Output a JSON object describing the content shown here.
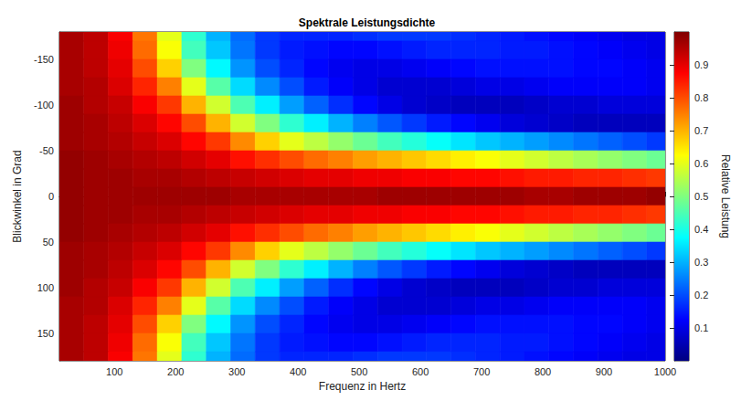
{
  "chart_data": {
    "type": "heatmap",
    "title": "Spektrale Leistungsdichte",
    "x_label": "Frequenz in Hertz",
    "y_label": "Blickwinkel in Grad",
    "x": [
      30,
      70,
      110,
      150,
      190,
      230,
      270,
      310,
      350,
      390,
      430,
      470,
      510,
      550,
      590,
      630,
      670,
      710,
      750,
      790,
      830,
      870,
      910,
      950,
      990
    ],
    "y": [
      -180,
      -160,
      -140,
      -120,
      -100,
      -80,
      -60,
      -40,
      -20,
      0,
      20,
      40,
      60,
      80,
      100,
      120,
      140,
      160,
      180
    ],
    "values": [
      [
        0.96,
        0.94,
        0.88,
        0.76,
        0.6,
        0.42,
        0.3,
        0.23,
        0.18,
        0.16,
        0.16,
        0.16,
        0.17,
        0.18,
        0.18,
        0.18,
        0.17,
        0.16,
        0.15,
        0.14,
        0.13,
        0.12,
        0.11,
        0.1,
        0.1
      ],
      [
        0.96,
        0.94,
        0.89,
        0.77,
        0.62,
        0.44,
        0.32,
        0.24,
        0.18,
        0.15,
        0.14,
        0.13,
        0.13,
        0.14,
        0.15,
        0.16,
        0.16,
        0.16,
        0.15,
        0.15,
        0.14,
        0.13,
        0.12,
        0.11,
        0.1
      ],
      [
        0.96,
        0.94,
        0.9,
        0.8,
        0.67,
        0.5,
        0.37,
        0.27,
        0.2,
        0.16,
        0.13,
        0.11,
        0.1,
        0.1,
        0.11,
        0.12,
        0.13,
        0.14,
        0.14,
        0.14,
        0.14,
        0.13,
        0.13,
        0.12,
        0.11
      ],
      [
        0.96,
        0.95,
        0.91,
        0.84,
        0.75,
        0.6,
        0.46,
        0.34,
        0.26,
        0.2,
        0.15,
        0.12,
        0.1,
        0.08,
        0.08,
        0.08,
        0.09,
        0.1,
        0.1,
        0.11,
        0.12,
        0.12,
        0.12,
        0.12,
        0.11
      ],
      [
        0.97,
        0.95,
        0.93,
        0.88,
        0.82,
        0.7,
        0.58,
        0.45,
        0.36,
        0.28,
        0.22,
        0.17,
        0.13,
        0.1,
        0.08,
        0.07,
        0.06,
        0.06,
        0.06,
        0.07,
        0.08,
        0.08,
        0.09,
        0.09,
        0.09
      ],
      [
        0.97,
        0.96,
        0.94,
        0.91,
        0.87,
        0.8,
        0.7,
        0.58,
        0.5,
        0.42,
        0.36,
        0.3,
        0.25,
        0.21,
        0.18,
        0.15,
        0.13,
        0.11,
        0.09,
        0.08,
        0.07,
        0.06,
        0.06,
        0.06,
        0.06
      ],
      [
        0.97,
        0.96,
        0.95,
        0.93,
        0.91,
        0.87,
        0.82,
        0.74,
        0.67,
        0.6,
        0.56,
        0.52,
        0.48,
        0.44,
        0.41,
        0.38,
        0.35,
        0.32,
        0.3,
        0.28,
        0.26,
        0.24,
        0.22,
        0.2,
        0.18
      ],
      [
        0.98,
        0.97,
        0.96,
        0.95,
        0.94,
        0.92,
        0.9,
        0.86,
        0.83,
        0.8,
        0.77,
        0.75,
        0.72,
        0.7,
        0.68,
        0.66,
        0.64,
        0.62,
        0.6,
        0.58,
        0.56,
        0.54,
        0.52,
        0.5,
        0.48
      ],
      [
        0.98,
        0.97,
        0.97,
        0.96,
        0.96,
        0.95,
        0.94,
        0.93,
        0.92,
        0.91,
        0.9,
        0.9,
        0.89,
        0.89,
        0.88,
        0.88,
        0.87,
        0.87,
        0.86,
        0.85,
        0.85,
        0.84,
        0.84,
        0.83,
        0.82
      ],
      [
        0.98,
        0.97,
        0.97,
        0.97,
        0.97,
        0.97,
        0.97,
        0.96,
        0.96,
        0.96,
        0.96,
        0.96,
        0.96,
        0.97,
        0.97,
        0.97,
        0.97,
        0.97,
        0.97,
        0.96,
        0.96,
        0.97,
        0.97,
        0.97,
        0.98
      ],
      [
        0.98,
        0.97,
        0.97,
        0.96,
        0.96,
        0.95,
        0.94,
        0.93,
        0.92,
        0.91,
        0.9,
        0.9,
        0.89,
        0.89,
        0.88,
        0.88,
        0.87,
        0.87,
        0.86,
        0.85,
        0.85,
        0.84,
        0.84,
        0.83,
        0.82
      ],
      [
        0.98,
        0.97,
        0.96,
        0.95,
        0.94,
        0.92,
        0.9,
        0.86,
        0.83,
        0.8,
        0.77,
        0.75,
        0.72,
        0.7,
        0.68,
        0.66,
        0.64,
        0.62,
        0.6,
        0.58,
        0.56,
        0.54,
        0.52,
        0.5,
        0.48
      ],
      [
        0.97,
        0.96,
        0.95,
        0.93,
        0.91,
        0.87,
        0.82,
        0.74,
        0.67,
        0.6,
        0.56,
        0.52,
        0.48,
        0.44,
        0.41,
        0.38,
        0.35,
        0.32,
        0.3,
        0.28,
        0.26,
        0.24,
        0.22,
        0.2,
        0.18
      ],
      [
        0.97,
        0.96,
        0.94,
        0.91,
        0.87,
        0.8,
        0.7,
        0.58,
        0.5,
        0.42,
        0.36,
        0.3,
        0.25,
        0.21,
        0.18,
        0.15,
        0.13,
        0.11,
        0.09,
        0.08,
        0.07,
        0.06,
        0.06,
        0.06,
        0.06
      ],
      [
        0.97,
        0.95,
        0.93,
        0.88,
        0.82,
        0.7,
        0.58,
        0.45,
        0.36,
        0.28,
        0.22,
        0.17,
        0.13,
        0.1,
        0.08,
        0.07,
        0.06,
        0.06,
        0.06,
        0.07,
        0.08,
        0.08,
        0.09,
        0.09,
        0.09
      ],
      [
        0.96,
        0.95,
        0.91,
        0.84,
        0.75,
        0.6,
        0.46,
        0.34,
        0.26,
        0.2,
        0.15,
        0.12,
        0.1,
        0.08,
        0.08,
        0.08,
        0.09,
        0.1,
        0.1,
        0.11,
        0.12,
        0.12,
        0.12,
        0.12,
        0.11
      ],
      [
        0.96,
        0.94,
        0.9,
        0.8,
        0.67,
        0.5,
        0.37,
        0.27,
        0.2,
        0.16,
        0.13,
        0.11,
        0.1,
        0.1,
        0.11,
        0.12,
        0.13,
        0.14,
        0.14,
        0.14,
        0.14,
        0.13,
        0.13,
        0.12,
        0.11
      ],
      [
        0.96,
        0.94,
        0.89,
        0.77,
        0.62,
        0.44,
        0.32,
        0.24,
        0.18,
        0.15,
        0.14,
        0.13,
        0.13,
        0.14,
        0.15,
        0.16,
        0.16,
        0.16,
        0.15,
        0.15,
        0.14,
        0.13,
        0.12,
        0.11,
        0.1
      ],
      [
        0.96,
        0.94,
        0.88,
        0.76,
        0.6,
        0.42,
        0.3,
        0.23,
        0.18,
        0.16,
        0.16,
        0.16,
        0.17,
        0.18,
        0.18,
        0.18,
        0.17,
        0.16,
        0.15,
        0.14,
        0.13,
        0.12,
        0.11,
        0.1,
        0.1
      ]
    ],
    "xlim": [
      10,
      1000
    ],
    "xticks": [
      100,
      200,
      300,
      400,
      500,
      600,
      700,
      800,
      900,
      1000
    ],
    "ylim": [
      -180,
      180
    ],
    "yticks": [
      -150,
      -100,
      -50,
      0,
      50,
      100,
      150
    ],
    "colorbar": {
      "label": "Relative Leistung",
      "range": [
        0,
        1
      ],
      "ticks": [
        0.1,
        0.2,
        0.3,
        0.4,
        0.5,
        0.6,
        0.7,
        0.8,
        0.9
      ]
    }
  }
}
